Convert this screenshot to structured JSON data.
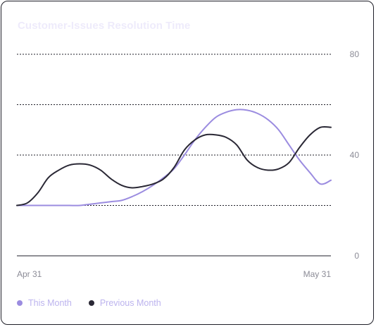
{
  "title": "Customer-Issues Resolution Time",
  "colors": {
    "this_month": "#9b8ce0",
    "previous_month": "#2a2835",
    "grid": "#1f1f28",
    "axis_text": "#8b8b96",
    "legend_text": "#bcb3ee",
    "title": "#eeebfb"
  },
  "legend": [
    {
      "label": "This Month",
      "color": "#9b8ce0"
    },
    {
      "label": "Previous Month",
      "color": "#2a2835"
    }
  ],
  "chart_data": {
    "type": "line",
    "title": "Customer-Issues Resolution Time",
    "xlabel": "",
    "ylabel": "",
    "x_tick_labels": [
      "Apr 31",
      "May 31"
    ],
    "y_tick_labels": [
      "0",
      "40",
      "80"
    ],
    "ylim": [
      0,
      80
    ],
    "grid": true,
    "legend_position": "bottom-left",
    "x": [
      0,
      1,
      2,
      3,
      4,
      5,
      6,
      7,
      8,
      9,
      10,
      11,
      12,
      13,
      14,
      15,
      16,
      17,
      18,
      19,
      20,
      21,
      22,
      23,
      24,
      25,
      26,
      27,
      28,
      29,
      30
    ],
    "series": [
      {
        "name": "This Month",
        "color": "#9b8ce0",
        "values": [
          20,
          20,
          20,
          20,
          20,
          20,
          20,
          20.5,
          21,
          21.5,
          22,
          23.5,
          25.5,
          28,
          31,
          34.5,
          40,
          46,
          51,
          55,
          57,
          58,
          57.8,
          56.5,
          54,
          50,
          44,
          38,
          33,
          28.5,
          30
        ]
      },
      {
        "name": "Previous Month",
        "color": "#2a2835",
        "values": [
          20,
          21,
          25,
          31,
          34,
          36,
          36.5,
          36,
          34,
          30.5,
          28,
          27,
          27.5,
          28.5,
          30.5,
          35,
          42,
          46,
          48,
          48,
          47,
          44,
          38,
          35,
          34,
          34.5,
          37,
          43,
          48,
          51,
          51
        ]
      }
    ]
  }
}
